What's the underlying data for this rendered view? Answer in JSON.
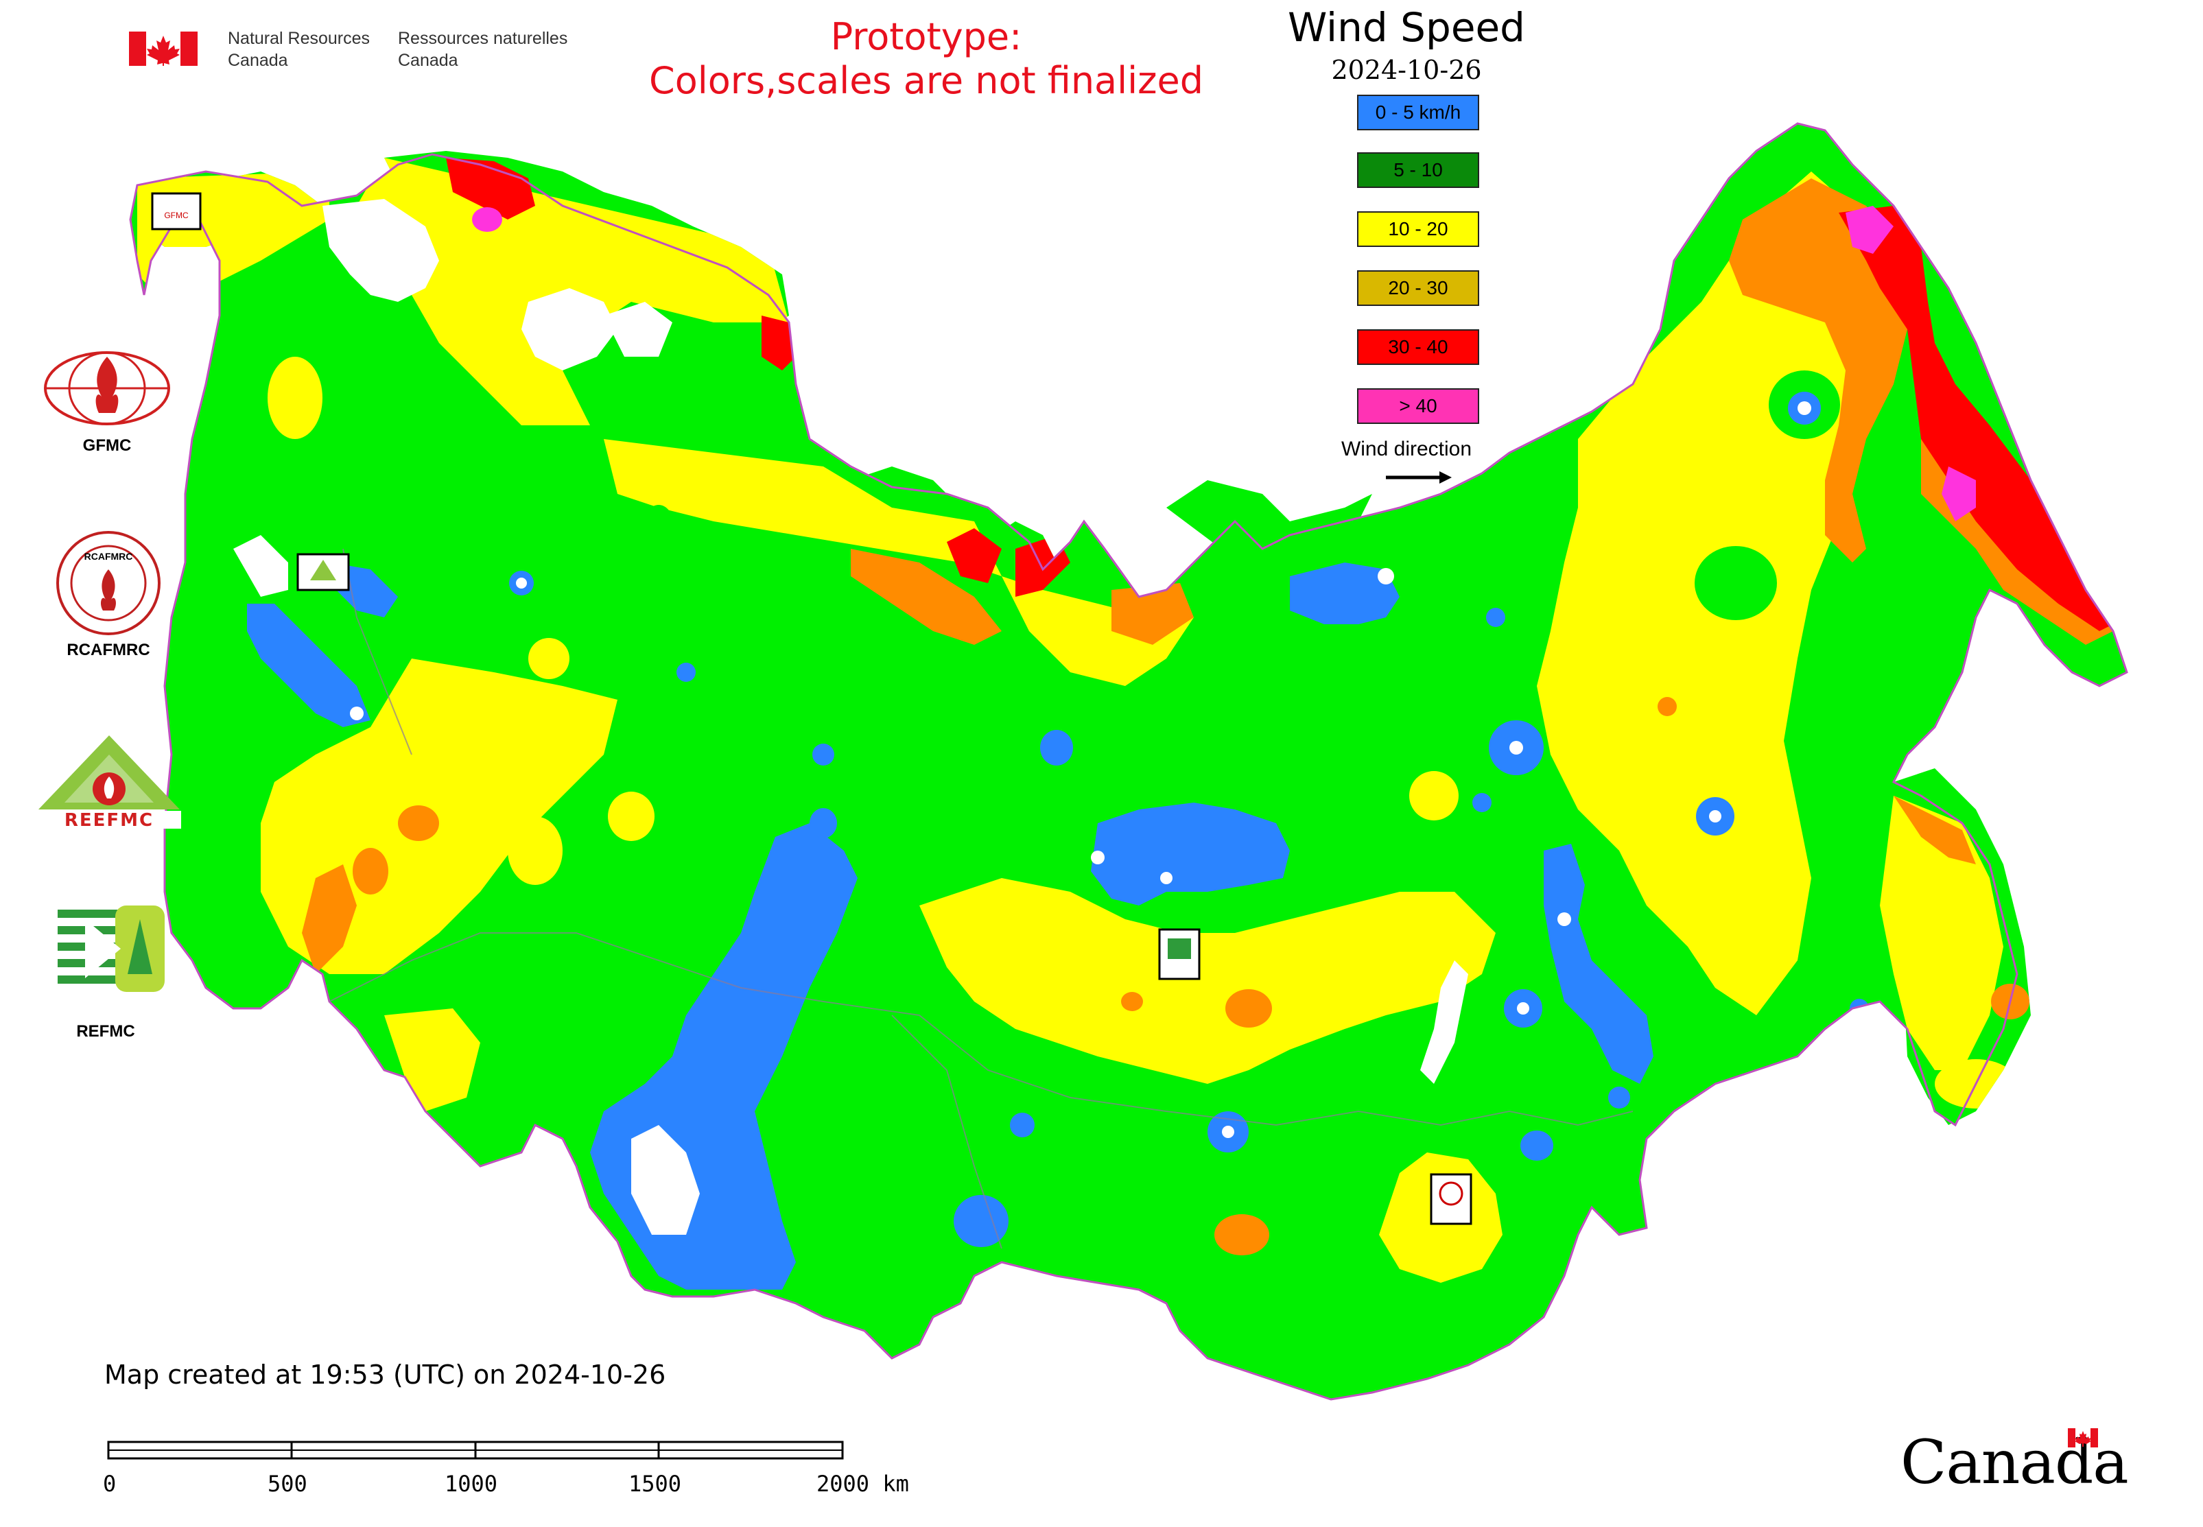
{
  "header": {
    "nrcan_en": [
      "Natural Resources",
      "Canada"
    ],
    "nrcan_fr": [
      "Ressources naturelles",
      "Canada"
    ],
    "prototype_line1": "Prototype:",
    "prototype_line2": "Colors,scales are not finalized"
  },
  "legend": {
    "title": "Wind Speed",
    "date": "2024-10-26",
    "items": [
      {
        "label": "0 - 5 km/h",
        "color": "#2b84ff"
      },
      {
        "label": "5 - 10",
        "color": "#0a8a0a"
      },
      {
        "label": "10 - 20",
        "color": "#ffff00"
      },
      {
        "label": "20 - 30",
        "color": "#d9b800"
      },
      {
        "label": "30 - 40",
        "color": "#ff0000"
      },
      {
        "label": "> 40",
        "color": "#ff33b4"
      }
    ],
    "wind_direction_label": "Wind direction"
  },
  "logos": [
    {
      "label": "GFMC",
      "icon": "gfmc-logo"
    },
    {
      "label": "RCAFMRC",
      "icon": "rcafmrc-logo"
    },
    {
      "label": "REEFMC",
      "icon": "reefmc-logo"
    },
    {
      "label": "REFMC",
      "icon": "refmc-logo"
    }
  ],
  "map_colors": {
    "calm": "#2b84ff",
    "light": "#00f000",
    "moderate": "#ffff00",
    "fresh": "#ff8c00",
    "strong": "#ff0000",
    "gale": "#ff33dd",
    "border": "#c050c0"
  },
  "footer": {
    "created": "Map created at 19:53 (UTC) on 2024-10-26",
    "scale_labels": [
      "0",
      "500",
      "1000",
      "1500",
      "2000 km"
    ],
    "wordmark": "Canada"
  }
}
